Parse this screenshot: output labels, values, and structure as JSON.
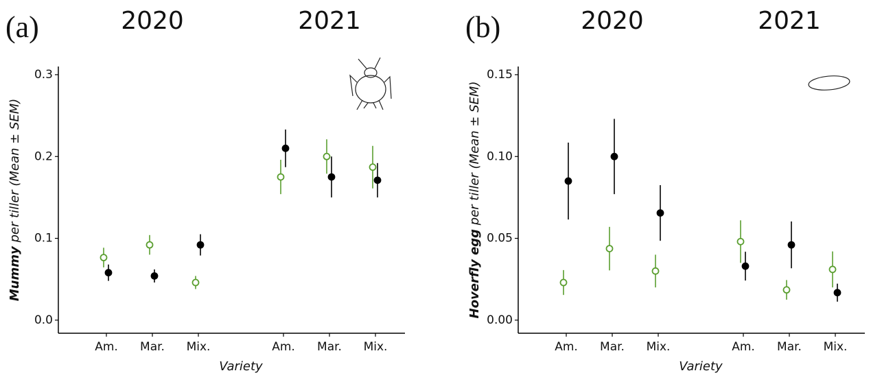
{
  "chart_data": [
    {
      "type": "dot",
      "panel_label": "(a)",
      "groups": [
        "2020",
        "2021"
      ],
      "categories": [
        "Am.",
        "Mar.",
        "Mix.",
        "Am.",
        "Mar.",
        "Mix."
      ],
      "xlabel": "Variety",
      "ylabel_bold": "Mummy",
      "ylabel": " per tiller (Mean ± SEM)",
      "ylim": [
        -0.016,
        0.31
      ],
      "yticks": [
        {
          "value": 0,
          "label": "0.0"
        },
        0.1,
        0.2,
        0.3
      ],
      "series": [
        {
          "color": "#5a9e2f",
          "marker": "open",
          "values": [
            0.0765,
            0.092,
            0.046,
            0.175,
            0.2,
            0.187
          ],
          "errors": [
            0.012,
            0.012,
            0.008,
            0.021,
            0.021,
            0.026
          ]
        },
        {
          "color": "#000000",
          "marker": "filled",
          "values": [
            0.058,
            0.054,
            0.092,
            0.21,
            0.175,
            0.171
          ],
          "errors": [
            0.01,
            0.008,
            0.013,
            0.023,
            0.025,
            0.021
          ]
        }
      ]
    },
    {
      "type": "dot",
      "panel_label": "(b)",
      "groups": [
        "2020",
        "2021"
      ],
      "categories": [
        "Am.",
        "Mar.",
        "Mix.",
        "Am.",
        "Mar.",
        "Mix."
      ],
      "xlabel": "Variety",
      "ylabel_bold": "Hoverfly egg",
      "ylabel": " per tiller (Mean ± SEM)",
      "ylim": [
        -0.008,
        0.155
      ],
      "yticks": [
        {
          "value": 0,
          "label": "0.00"
        },
        0.05,
        {
          "value": 0.1,
          "label": "0.10"
        },
        0.15
      ],
      "series": [
        {
          "color": "#5a9e2f",
          "marker": "open",
          "values": [
            0.023,
            0.0437,
            0.03,
            0.048,
            0.0185,
            0.031
          ],
          "errors": [
            0.0076,
            0.0133,
            0.01,
            0.013,
            0.006,
            0.011
          ]
        },
        {
          "color": "#000000",
          "marker": "filled",
          "values": [
            0.085,
            0.1,
            0.0655,
            0.033,
            0.046,
            0.0168
          ],
          "errors": [
            0.0235,
            0.023,
            0.017,
            0.0088,
            0.0143,
            0.0055
          ]
        }
      ]
    }
  ]
}
